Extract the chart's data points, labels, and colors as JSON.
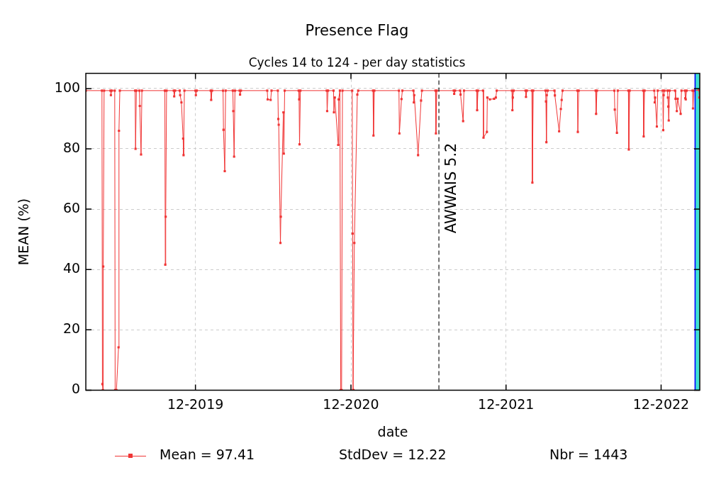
{
  "chart_data": {
    "type": "line",
    "title": "Presence Flag",
    "subtitle": "Cycles 14 to 124 - per day statistics",
    "xlabel": "date",
    "ylabel": "MEAN (%)",
    "xlim": [
      "2019-03-18",
      "2023-03-02"
    ],
    "ylim": [
      0,
      105
    ],
    "xticks": [
      {
        "value": "2019-12-01",
        "label": "12-2019"
      },
      {
        "value": "2020-12-01",
        "label": "12-2020"
      },
      {
        "value": "2021-12-01",
        "label": "12-2021"
      },
      {
        "value": "2022-12-01",
        "label": "12-2022"
      }
    ],
    "yticks": [
      0,
      20,
      40,
      60,
      80,
      100
    ],
    "grid": true,
    "legend": "bottom",
    "marker": "square",
    "line_style": "solid",
    "series": [
      {
        "name": "Mean = 97.41",
        "color": "#f03535",
        "x": [
          "2019-03-18",
          "2019-04-25",
          "2019-04-26",
          "2019-04-27",
          "2019-04-28",
          "2019-04-30",
          "2019-05-15",
          "2019-05-16",
          "2019-05-18",
          "2019-05-25",
          "2019-05-26",
          "2019-05-29",
          "2019-06-03",
          "2019-06-04",
          "2019-06-06",
          "2019-07-12",
          "2019-07-13",
          "2019-07-15",
          "2019-07-22",
          "2019-07-23",
          "2019-07-26",
          "2019-07-28",
          "2019-09-20",
          "2019-09-21",
          "2019-09-22",
          "2019-09-24",
          "2019-10-11",
          "2019-10-12",
          "2019-10-14",
          "2019-10-25",
          "2019-10-26",
          "2019-10-29",
          "2019-11-02",
          "2019-11-03",
          "2019-11-05",
          "2019-12-01",
          "2019-12-02",
          "2019-12-04",
          "2020-01-06",
          "2020-01-07",
          "2020-01-09",
          "2020-02-04",
          "2020-02-05",
          "2020-02-08",
          "2020-02-10",
          "2020-02-27",
          "2020-02-28",
          "2020-03-01",
          "2020-03-03",
          "2020-03-14",
          "2020-03-15",
          "2020-03-17",
          "2020-05-18",
          "2020-05-19",
          "2020-05-26",
          "2020-05-28",
          "2020-06-12",
          "2020-06-13",
          "2020-06-14",
          "2020-06-18",
          "2020-06-19",
          "2020-06-25",
          "2020-06-26",
          "2020-06-28",
          "2020-07-31",
          "2020-08-01",
          "2020-08-02",
          "2020-08-04",
          "2020-10-05",
          "2020-10-06",
          "2020-10-08",
          "2020-10-21",
          "2020-10-22",
          "2020-10-24",
          "2020-11-01",
          "2020-11-02",
          "2020-11-05",
          "2020-11-07",
          "2020-11-09",
          "2020-11-11",
          "2020-12-04",
          "2020-12-05",
          "2020-12-06",
          "2020-12-07",
          "2020-12-09",
          "2020-12-16",
          "2020-12-18",
          "2021-01-22",
          "2021-01-23",
          "2021-01-25",
          "2021-03-24",
          "2021-03-25",
          "2021-03-30",
          "2021-04-01",
          "2021-04-27",
          "2021-04-28",
          "2021-04-29",
          "2021-05-08",
          "2021-05-15",
          "2021-05-17",
          "2021-06-18",
          "2021-06-19",
          "2021-06-21",
          "2021-07-31",
          "2021-08-01",
          "2021-08-03",
          "2021-08-15",
          "2021-08-16",
          "2021-08-22",
          "2021-08-24",
          "2021-09-23",
          "2021-09-24",
          "2021-09-26",
          "2021-10-08",
          "2021-10-09",
          "2021-10-17",
          "2021-10-18",
          "2021-10-24",
          "2021-11-03",
          "2021-11-07",
          "2021-11-09",
          "2021-12-15",
          "2021-12-16",
          "2021-12-17",
          "2021-12-19",
          "2022-01-16",
          "2022-01-17",
          "2022-01-19",
          "2022-01-31",
          "2022-02-01",
          "2022-02-03",
          "2022-03-04",
          "2022-03-05",
          "2022-03-06",
          "2022-03-07",
          "2022-03-09",
          "2022-03-25",
          "2022-03-26",
          "2022-04-05",
          "2022-04-09",
          "2022-04-11",
          "2022-04-13",
          "2022-05-18",
          "2022-05-19",
          "2022-05-21",
          "2022-06-30",
          "2022-07-01",
          "2022-07-03",
          "2022-08-13",
          "2022-08-14",
          "2022-08-19",
          "2022-08-21",
          "2022-09-15",
          "2022-09-16",
          "2022-09-18",
          "2022-10-20",
          "2022-10-21",
          "2022-10-23",
          "2022-11-15",
          "2022-11-16",
          "2022-11-17",
          "2022-11-21",
          "2022-11-23",
          "2022-12-05",
          "2022-12-06",
          "2022-12-07",
          "2022-12-09",
          "2022-12-16",
          "2022-12-17",
          "2022-12-18",
          "2022-12-19",
          "2022-12-21",
          "2023-01-03",
          "2023-01-04",
          "2023-01-07",
          "2023-01-09",
          "2023-01-16",
          "2023-01-18",
          "2023-01-26",
          "2023-01-27",
          "2023-01-28",
          "2023-01-30",
          "2023-02-13",
          "2023-02-14",
          "2023-02-16",
          "2023-02-28",
          "2023-03-01"
        ],
        "values": [
          99.3,
          99.3,
          2,
          0,
          41,
          99.3,
          99.3,
          97.8,
          99.3,
          99.3,
          0,
          0,
          14.2,
          86,
          99.3,
          99.3,
          80,
          99.3,
          99.3,
          94.2,
          78.1,
          99.3,
          99.3,
          41.6,
          57.5,
          99.3,
          99.3,
          97.4,
          99.3,
          99.3,
          97.8,
          95.4,
          83.4,
          77.9,
          99.3,
          99.3,
          97.8,
          99.3,
          99.3,
          96.2,
          99.3,
          99.3,
          86.3,
          72.6,
          99.3,
          99.3,
          92.5,
          77.4,
          99.3,
          99.3,
          98,
          99.3,
          99.3,
          96.4,
          96.2,
          99.3,
          99.3,
          89.9,
          88,
          48.8,
          57.5,
          92.1,
          78.4,
          99.3,
          99.3,
          96.4,
          81.5,
          99.3,
          99.3,
          92.5,
          99.3,
          99.3,
          92.1,
          97,
          81.3,
          96.4,
          99.3,
          0,
          0,
          99.3,
          99.3,
          51.9,
          0,
          0,
          48.8,
          98,
          99.3,
          99.3,
          84.4,
          99.3,
          99.3,
          85.1,
          96.5,
          99.3,
          99.3,
          95.4,
          97.8,
          77.9,
          96,
          99.3,
          99.3,
          85.1,
          99.3,
          99.3,
          98.2,
          99.3,
          99.3,
          98,
          89.2,
          99.3,
          99.3,
          92.8,
          99.3,
          99.3,
          83.7,
          85.6,
          97,
          96.4,
          96.6,
          97,
          99.3,
          99.3,
          92.8,
          97,
          99.3,
          99.3,
          97.2,
          99.3,
          99.3,
          68.8,
          99.3,
          99.3,
          95.7,
          82.2,
          97.8,
          99.3,
          99.3,
          97.7,
          85.8,
          93.2,
          96.2,
          99.3,
          99.3,
          85.6,
          99.3,
          99.3,
          91.6,
          99.3,
          99.3,
          93,
          85.3,
          99.3,
          99.3,
          79.8,
          99.3,
          99.3,
          84.1,
          99.3,
          99.3,
          95.4,
          97,
          87.4,
          99.3,
          99.3,
          86.2,
          97.8,
          99.3,
          99.3,
          97,
          94,
          89.4,
          99.3,
          99.3,
          96.6,
          92.5,
          96.6,
          91.6,
          99.3,
          99.3,
          96.8,
          96.4,
          99.3,
          99.3,
          93.4,
          99.3,
          99.5,
          97
        ]
      }
    ],
    "ref_lines": [
      {
        "axis": "x",
        "value": "2021-06-26",
        "label": "AWWAIS 5.2",
        "color": "#000000",
        "line_style": "dashed"
      },
      {
        "axis": "x",
        "value": "2023-02-19",
        "label": null,
        "color": "#0000ff",
        "line_style": "solid"
      }
    ],
    "bands": [
      {
        "axis": "x",
        "from": "2023-02-19",
        "to": "2023-03-02",
        "label": null,
        "color": "#40e0d0"
      }
    ],
    "annotations": [
      "StdDev = 12.22",
      "Nbr = 1443"
    ]
  }
}
